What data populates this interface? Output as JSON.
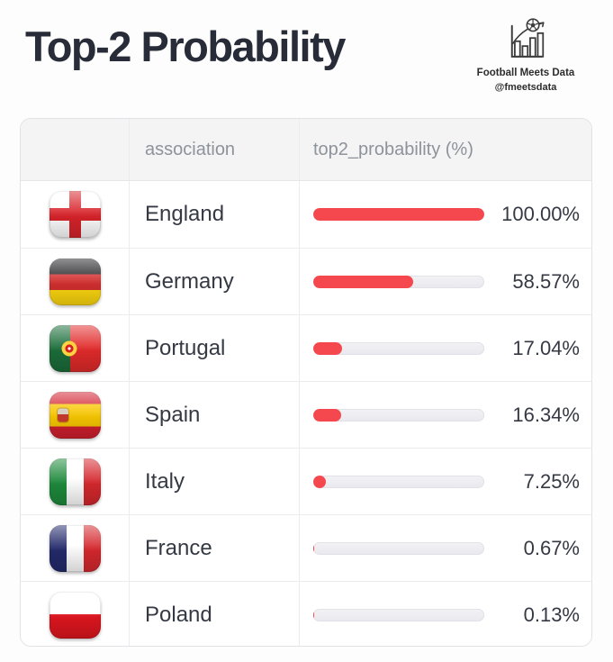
{
  "page": {
    "title": "Top-2 Probability"
  },
  "brand": {
    "name": "Football Meets Data",
    "handle": "@fmeetsdata",
    "logo_icon": "bar-chart-with-football-icon"
  },
  "table": {
    "columns": [
      {
        "key": "flag",
        "label": ""
      },
      {
        "key": "association",
        "label": "association"
      },
      {
        "key": "top2_probability",
        "label": "top2_probability (%)"
      }
    ],
    "rows": [
      {
        "flag": "england",
        "association": "England",
        "value_label": "100.00%",
        "value_pct": 100.0
      },
      {
        "flag": "germany",
        "association": "Germany",
        "value_label": "58.57%",
        "value_pct": 58.57
      },
      {
        "flag": "portugal",
        "association": "Portugal",
        "value_label": "17.04%",
        "value_pct": 17.04
      },
      {
        "flag": "spain",
        "association": "Spain",
        "value_label": "16.34%",
        "value_pct": 16.34
      },
      {
        "flag": "italy",
        "association": "Italy",
        "value_label": "7.25%",
        "value_pct": 7.25
      },
      {
        "flag": "france",
        "association": "France",
        "value_label": "0.67%",
        "value_pct": 0.67
      },
      {
        "flag": "poland",
        "association": "Poland",
        "value_label": "0.13%",
        "value_pct": 0.13
      }
    ]
  },
  "colors": {
    "accent_red": "#f4484e",
    "bar_track": "#ededf2",
    "title_text": "#272c38",
    "header_text": "#8d929b",
    "body_text": "#343943",
    "table_border": "#e2e2e6",
    "header_bg": "#f4f4f5"
  },
  "chart_data": {
    "type": "bar",
    "orientation": "horizontal",
    "title": "Top-2 Probability",
    "categories": [
      "England",
      "Germany",
      "Portugal",
      "Spain",
      "Italy",
      "France",
      "Poland"
    ],
    "values": [
      100.0,
      58.57,
      17.04,
      16.34,
      7.25,
      0.67,
      0.13
    ],
    "xlabel": "top2_probability (%)",
    "ylabel": "association",
    "xlim": [
      0,
      100
    ],
    "bar_color": "#f4484e",
    "track_color": "#ededf2",
    "grid": false,
    "legend": false
  }
}
